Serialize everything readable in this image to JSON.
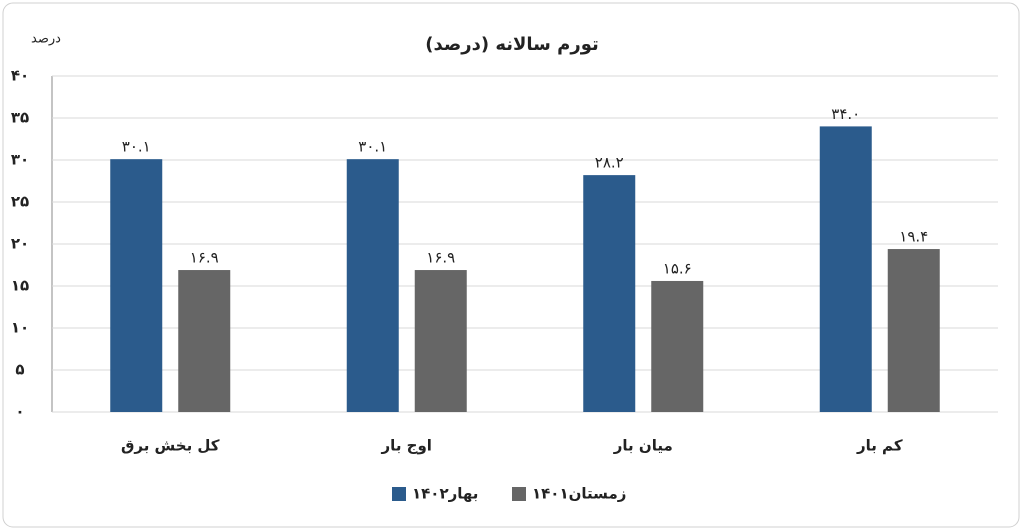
{
  "chart_data": {
    "type": "bar",
    "title": "تورم سالانه (درصد)",
    "y_label": "درصد",
    "categories": [
      "کل بخش برق",
      "اوج بار",
      "میان بار",
      "کم بار"
    ],
    "series": [
      {
        "name": "بهار۱۴۰۲",
        "color": "#2b5b8c",
        "values": [
          30.1,
          30.1,
          28.2,
          34.0
        ],
        "value_labels": [
          "۳۰.۱",
          "۳۰.۱",
          "۲۸.۲",
          "۳۴.۰"
        ]
      },
      {
        "name": "زمستان۱۴۰۱",
        "color": "#666666",
        "values": [
          16.9,
          16.9,
          15.6,
          19.4
        ],
        "value_labels": [
          "۱۶.۹",
          "۱۶.۹",
          "۱۵.۶",
          "۱۹.۴"
        ]
      }
    ],
    "ylim": [
      0,
      40
    ],
    "yticks": [
      {
        "value": 0,
        "label": "۰"
      },
      {
        "value": 5,
        "label": "۵"
      },
      {
        "value": 10,
        "label": "۱۰"
      },
      {
        "value": 15,
        "label": "۱۵"
      },
      {
        "value": 20,
        "label": "۲۰"
      },
      {
        "value": 25,
        "label": "۲۵"
      },
      {
        "value": 30,
        "label": "۳۰"
      },
      {
        "value": 35,
        "label": "۳۵"
      },
      {
        "value": 40,
        "label": "۴۰"
      }
    ],
    "grid": true
  }
}
